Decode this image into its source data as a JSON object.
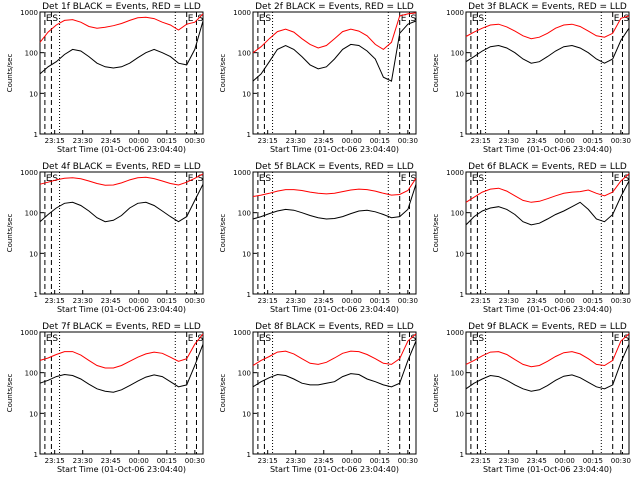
{
  "colors": {
    "events": "#000000",
    "lld": "#ff0000",
    "axes": "#000000",
    "background": "#ffffff"
  },
  "chart_data": [
    {
      "type": "line",
      "title": "Det 1f BLACK = Events, RED = LLD",
      "ylabel": "Counts/sec",
      "xlabel": "Start Time (01-Oct-06 23:04:40)",
      "yscale": "log",
      "ylim": [
        1,
        1000
      ],
      "x_ticks": [
        "23:15",
        "23:30",
        "23:45",
        "00:00",
        "00:15",
        "00:30"
      ],
      "y_ticks": [
        "1",
        "10",
        "100",
        "1000"
      ],
      "markers": [
        {
          "label": "E",
          "pos": 0.03
        },
        {
          "label": "S",
          "pos": 0.07
        },
        {
          "label": "E",
          "pos": 0.9
        },
        {
          "label": "S",
          "pos": 0.96
        }
      ],
      "series": [
        {
          "values": [
            180,
            320,
            480,
            620,
            650,
            560,
            440,
            400,
            420,
            460,
            520,
            620,
            720,
            740,
            690,
            560,
            480,
            360,
            500,
            560,
            900
          ]
        },
        {
          "values": [
            30,
            45,
            60,
            90,
            120,
            110,
            80,
            55,
            45,
            42,
            45,
            55,
            75,
            100,
            120,
            100,
            80,
            55,
            50,
            120,
            600
          ]
        }
      ]
    },
    {
      "type": "line",
      "title": "Det 2f BLACK = Events, RED = LLD",
      "ylabel": "Counts/sec",
      "xlabel": "Start Time (01-Oct-06 23:04:40)",
      "yscale": "log",
      "ylim": [
        1,
        1000
      ],
      "x_ticks": [
        "23:15",
        "23:30",
        "23:45",
        "00:00",
        "00:15",
        "00:30"
      ],
      "y_ticks": [
        "1",
        "10",
        "100",
        "1000"
      ],
      "markers": [
        {
          "label": "E",
          "pos": 0.03
        },
        {
          "label": "S",
          "pos": 0.07
        },
        {
          "label": "E",
          "pos": 0.9
        },
        {
          "label": "S",
          "pos": 0.96
        }
      ],
      "series": [
        {
          "values": [
            100,
            140,
            220,
            330,
            380,
            320,
            220,
            160,
            130,
            150,
            220,
            330,
            380,
            340,
            260,
            160,
            120,
            180,
            800,
            900,
            950
          ]
        },
        {
          "values": [
            20,
            30,
            60,
            120,
            150,
            120,
            80,
            50,
            40,
            45,
            70,
            120,
            160,
            150,
            110,
            70,
            25,
            20,
            300,
            500,
            600
          ]
        }
      ]
    },
    {
      "type": "line",
      "title": "Det 3f BLACK = Events, RED = LLD",
      "ylabel": "Counts/sec",
      "xlabel": "Start Time (01-Oct-06 23:04:40)",
      "yscale": "log",
      "ylim": [
        1,
        1000
      ],
      "x_ticks": [
        "23:15",
        "23:30",
        "23:45",
        "00:00",
        "00:15",
        "00:30"
      ],
      "y_ticks": [
        "1",
        "10",
        "100",
        "1000"
      ],
      "markers": [
        {
          "label": "E",
          "pos": 0.03
        },
        {
          "label": "S",
          "pos": 0.07
        },
        {
          "label": "E",
          "pos": 0.9
        },
        {
          "label": "S",
          "pos": 0.96
        }
      ],
      "series": [
        {
          "values": [
            250,
            320,
            400,
            480,
            500,
            430,
            340,
            260,
            220,
            240,
            300,
            400,
            480,
            500,
            440,
            340,
            260,
            240,
            300,
            700,
            800
          ]
        },
        {
          "values": [
            60,
            80,
            110,
            140,
            150,
            130,
            100,
            70,
            55,
            60,
            80,
            110,
            140,
            150,
            130,
            100,
            70,
            55,
            70,
            200,
            400
          ]
        }
      ]
    },
    {
      "type": "line",
      "title": "Det 4f BLACK = Events, RED = LLD",
      "ylabel": "Counts/sec",
      "xlabel": "Start Time (01-Oct-06 23:04:40)",
      "yscale": "log",
      "ylim": [
        1,
        1000
      ],
      "x_ticks": [
        "23:15",
        "23:30",
        "23:45",
        "00:00",
        "00:15",
        "00:30"
      ],
      "y_ticks": [
        "1",
        "10",
        "100",
        "1000"
      ],
      "markers": [
        {
          "label": "E",
          "pos": 0.03
        },
        {
          "label": "S",
          "pos": 0.07
        },
        {
          "label": "E",
          "pos": 0.9
        },
        {
          "label": "S",
          "pos": 0.96
        }
      ],
      "series": [
        {
          "values": [
            500,
            560,
            640,
            700,
            720,
            680,
            600,
            520,
            470,
            480,
            540,
            640,
            720,
            740,
            690,
            600,
            520,
            480,
            560,
            700,
            900
          ]
        },
        {
          "values": [
            60,
            90,
            130,
            170,
            180,
            150,
            110,
            75,
            60,
            65,
            85,
            130,
            170,
            180,
            150,
            110,
            80,
            60,
            80,
            200,
            500
          ]
        }
      ]
    },
    {
      "type": "line",
      "title": "Det 5f BLACK = Events, RED = LLD",
      "ylabel": "Counts/sec",
      "xlabel": "Start Time (01-Oct-06 23:04:40)",
      "yscale": "log",
      "ylim": [
        1,
        1000
      ],
      "x_ticks": [
        "23:15",
        "23:30",
        "23:45",
        "00:00",
        "00:15",
        "00:30"
      ],
      "y_ticks": [
        "1",
        "10",
        "100",
        "1000"
      ],
      "markers": [
        {
          "label": "E",
          "pos": 0.03
        },
        {
          "label": "S",
          "pos": 0.07
        },
        {
          "label": "E",
          "pos": 0.9
        },
        {
          "label": "S",
          "pos": 0.96
        }
      ],
      "series": [
        {
          "values": [
            250,
            270,
            300,
            340,
            370,
            370,
            350,
            320,
            300,
            290,
            300,
            330,
            360,
            380,
            370,
            340,
            300,
            270,
            280,
            350,
            700
          ]
        },
        {
          "values": [
            70,
            80,
            95,
            110,
            120,
            115,
            100,
            85,
            75,
            70,
            72,
            80,
            95,
            110,
            115,
            105,
            90,
            75,
            80,
            120,
            500
          ]
        }
      ]
    },
    {
      "type": "line",
      "title": "Det 6f BLACK = Events, RED = LLD",
      "ylabel": "Counts/sec",
      "xlabel": "Start Time (01-Oct-06 23:04:40)",
      "yscale": "log",
      "ylim": [
        1,
        1000
      ],
      "x_ticks": [
        "23:15",
        "23:30",
        "23:45",
        "00:00",
        "00:15",
        "00:30"
      ],
      "y_ticks": [
        "1",
        "10",
        "100",
        "1000"
      ],
      "markers": [
        {
          "label": "E",
          "pos": 0.03
        },
        {
          "label": "S",
          "pos": 0.07
        },
        {
          "label": "E",
          "pos": 0.9
        },
        {
          "label": "S",
          "pos": 0.96
        }
      ],
      "series": [
        {
          "values": [
            180,
            240,
            320,
            380,
            400,
            340,
            260,
            200,
            180,
            190,
            220,
            260,
            300,
            320,
            330,
            360,
            300,
            260,
            320,
            600,
            900
          ]
        },
        {
          "values": [
            50,
            80,
            110,
            130,
            140,
            120,
            90,
            60,
            50,
            55,
            70,
            90,
            110,
            140,
            180,
            120,
            70,
            60,
            90,
            250,
            600
          ]
        }
      ]
    },
    {
      "type": "line",
      "title": "Det 7f BLACK = Events, RED = LLD",
      "ylabel": "Counts/sec",
      "xlabel": "Start Time (01-Oct-06 23:04:40)",
      "yscale": "log",
      "ylim": [
        1,
        1000
      ],
      "x_ticks": [
        "23:15",
        "23:30",
        "23:45",
        "00:00",
        "00:15",
        "00:30"
      ],
      "y_ticks": [
        "1",
        "10",
        "100",
        "1000"
      ],
      "markers": [
        {
          "label": "E",
          "pos": 0.03
        },
        {
          "label": "S",
          "pos": 0.07
        },
        {
          "label": "E",
          "pos": 0.9
        },
        {
          "label": "S",
          "pos": 0.96
        }
      ],
      "series": [
        {
          "values": [
            200,
            230,
            280,
            330,
            330,
            270,
            200,
            150,
            130,
            130,
            150,
            190,
            240,
            290,
            320,
            300,
            240,
            190,
            220,
            500,
            900
          ]
        },
        {
          "values": [
            55,
            65,
            80,
            90,
            85,
            70,
            52,
            40,
            35,
            33,
            38,
            48,
            62,
            78,
            88,
            80,
            60,
            45,
            50,
            150,
            500
          ]
        }
      ]
    },
    {
      "type": "line",
      "title": "Det 8f BLACK = Events, RED = LLD",
      "ylabel": "Counts/sec",
      "xlabel": "Start Time (01-Oct-06 23:04:40)",
      "yscale": "log",
      "ylim": [
        1,
        1000
      ],
      "x_ticks": [
        "23:15",
        "23:30",
        "23:45",
        "00:00",
        "00:15",
        "00:30"
      ],
      "y_ticks": [
        "1",
        "10",
        "100",
        "1000"
      ],
      "markers": [
        {
          "label": "E",
          "pos": 0.03
        },
        {
          "label": "S",
          "pos": 0.07
        },
        {
          "label": "E",
          "pos": 0.9
        },
        {
          "label": "S",
          "pos": 0.96
        }
      ],
      "series": [
        {
          "values": [
            150,
            200,
            250,
            320,
            340,
            290,
            220,
            170,
            160,
            180,
            230,
            300,
            340,
            330,
            280,
            220,
            170,
            160,
            220,
            600,
            900
          ]
        },
        {
          "values": [
            45,
            60,
            75,
            90,
            85,
            70,
            55,
            50,
            50,
            55,
            60,
            80,
            95,
            90,
            70,
            60,
            50,
            45,
            55,
            200,
            600
          ]
        }
      ]
    },
    {
      "type": "line",
      "title": "Det 9f BLACK = Events, RED = LLD",
      "ylabel": "Counts/sec",
      "xlabel": "Start Time (01-Oct-06 23:04:40)",
      "yscale": "log",
      "ylim": [
        1,
        1000
      ],
      "x_ticks": [
        "23:15",
        "23:30",
        "23:45",
        "00:00",
        "00:15",
        "00:30"
      ],
      "y_ticks": [
        "1",
        "10",
        "100",
        "1000"
      ],
      "markers": [
        {
          "label": "E",
          "pos": 0.03
        },
        {
          "label": "S",
          "pos": 0.07
        },
        {
          "label": "E",
          "pos": 0.9
        },
        {
          "label": "S",
          "pos": 0.96
        }
      ],
      "series": [
        {
          "values": [
            160,
            200,
            260,
            320,
            330,
            280,
            210,
            160,
            140,
            150,
            190,
            250,
            310,
            330,
            290,
            220,
            160,
            150,
            200,
            600,
            900
          ]
        },
        {
          "values": [
            40,
            55,
            70,
            85,
            80,
            65,
            50,
            40,
            35,
            38,
            48,
            65,
            82,
            88,
            75,
            58,
            45,
            40,
            50,
            180,
            500
          ]
        }
      ]
    }
  ]
}
